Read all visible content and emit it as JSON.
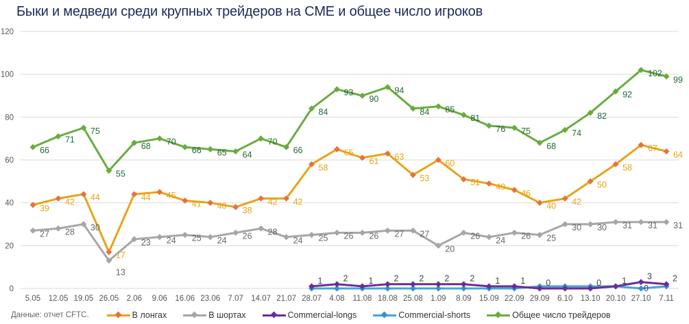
{
  "chart_data": {
    "type": "line",
    "title": "Быки и медведи среди крупных трейдеров на CME и общее число игроков",
    "source": "Данные: отчет CFTC.",
    "xlabel": "",
    "ylabel": "",
    "ylim": [
      0,
      120
    ],
    "yticks": [
      0,
      20,
      40,
      60,
      80,
      100,
      120
    ],
    "grid": true,
    "legend_position": "bottom",
    "categories": [
      "5.05",
      "12.05",
      "19.05",
      "26.05",
      "2.06",
      "9.06",
      "16.06",
      "23.06",
      "7.07",
      "14.07",
      "21.07",
      "28.07",
      "4.08",
      "11.08",
      "18.08",
      "25.08",
      "1.09",
      "8.09",
      "15.09",
      "22.09",
      "29.09",
      "6.10",
      "13.10",
      "20.10",
      "27.10",
      "7.11"
    ],
    "series": [
      {
        "name": "В лонгах",
        "color": "#e8a317",
        "marker_color": "#e8733a",
        "label_color": "#e8a317",
        "values": [
          39,
          42,
          44,
          17,
          44,
          45,
          41,
          40,
          38,
          42,
          42,
          58,
          65,
          61,
          63,
          53,
          60,
          51,
          49,
          46,
          40,
          42,
          50,
          58,
          67,
          64
        ],
        "labels": [
          "39",
          "42",
          "44",
          "17",
          "44",
          "45",
          "41",
          "40",
          "38",
          "42",
          "42",
          "58",
          "65",
          "61",
          "63",
          "53",
          "60",
          "51",
          "49",
          "46",
          "40",
          "42",
          "50",
          "58",
          "67",
          "64"
        ]
      },
      {
        "name": "В шортах",
        "color": "#a6a6a6",
        "marker_color": "#a6a6a6",
        "label_color": "#666666",
        "values": [
          27,
          28,
          30,
          13,
          23,
          24,
          25,
          24,
          26,
          28,
          24,
          25,
          26,
          26,
          27,
          27,
          20,
          26,
          24,
          26,
          25,
          30,
          30,
          31,
          31,
          31
        ],
        "labels": [
          "27",
          "28",
          "30",
          "13",
          "23",
          "24",
          "25",
          "24",
          "26",
          "28",
          "24",
          "25",
          "26",
          "26",
          "27",
          "27",
          "20",
          "26",
          "24",
          "26",
          "25",
          "30",
          "30",
          "31",
          "31",
          "31"
        ]
      },
      {
        "name": "Commercial-longs",
        "color": "#6a2c9a",
        "marker_color": "#6a2c9a",
        "label_color": "#444444",
        "values": [
          null,
          null,
          null,
          null,
          null,
          null,
          null,
          null,
          null,
          null,
          null,
          1,
          2,
          1,
          2,
          2,
          2,
          2,
          1,
          1,
          0,
          0,
          0,
          1,
          3,
          2
        ],
        "labels": [
          "",
          "",
          "",
          "",
          "",
          "",
          "",
          "",
          "",
          "",
          "",
          "1",
          "2",
          "1",
          "2",
          "2",
          "2",
          "2",
          "1",
          "1",
          "0",
          "",
          "0",
          "1",
          "3",
          "2"
        ]
      },
      {
        "name": "Commercial-shorts",
        "color": "#4aa3d8",
        "marker_color": "#3a8fd0",
        "label_color": "#444444",
        "values": [
          null,
          null,
          null,
          null,
          null,
          null,
          null,
          null,
          null,
          null,
          null,
          0,
          0,
          0,
          0,
          0,
          0,
          0,
          0,
          0,
          1,
          1,
          1,
          1,
          0,
          1
        ],
        "labels": [
          "",
          "",
          "",
          "",
          "",
          "",
          "",
          "",
          "",
          "",
          "",
          "",
          "",
          "",
          "",
          "",
          "",
          "",
          "",
          "",
          "",
          "",
          "",
          "",
          "0",
          ""
        ]
      },
      {
        "name": "Общее число трейдеров",
        "color": "#6aab3f",
        "marker_color": "#6aab3f",
        "label_color": "#1e6b32",
        "values": [
          66,
          71,
          75,
          55,
          68,
          70,
          66,
          65,
          64,
          70,
          66,
          84,
          93,
          90,
          94,
          84,
          85,
          81,
          76,
          75,
          68,
          74,
          82,
          92,
          102,
          99
        ],
        "labels": [
          "66",
          "71",
          "75",
          "55",
          "68",
          "70",
          "66",
          "65",
          "64",
          "70",
          "66",
          "84",
          "93",
          "90",
          "94",
          "84",
          "85",
          "81",
          "76",
          "75",
          "68",
          "74",
          "82",
          "92",
          "102",
          "99"
        ]
      }
    ]
  }
}
